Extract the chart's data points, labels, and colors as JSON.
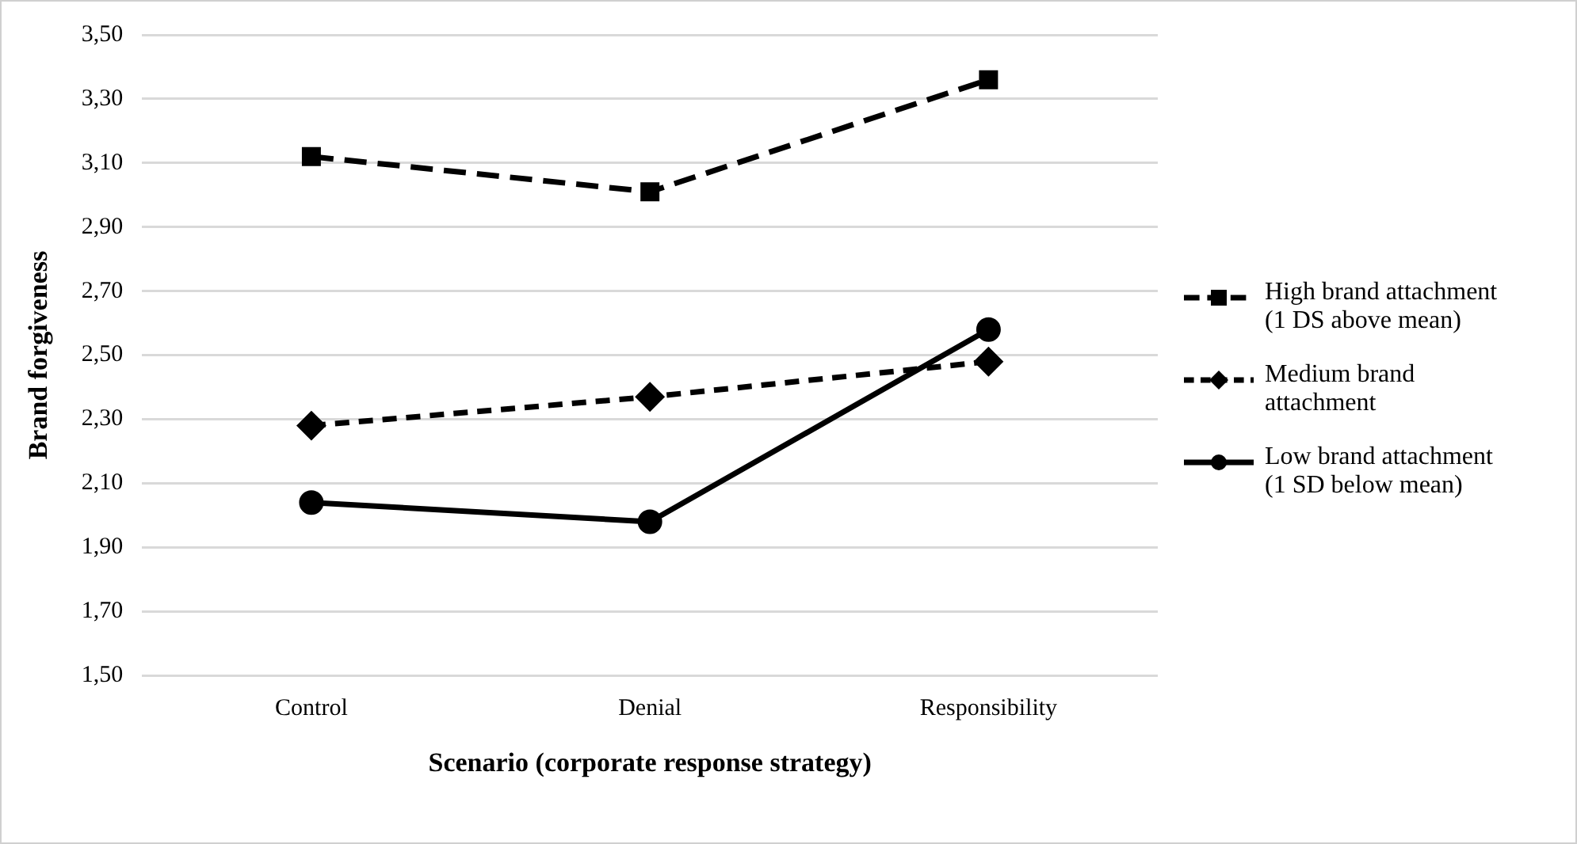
{
  "chart_data": {
    "type": "line",
    "xlabel": "Scenario (corporate response strategy)",
    "ylabel": "Brand forgiveness",
    "categories": [
      "Control",
      "Denial",
      "Responsibility"
    ],
    "series": [
      {
        "name": "High brand attachment (1 DS above mean)",
        "color": "#000000",
        "values": [
          3.12,
          3.01,
          3.36
        ],
        "marker": "square",
        "line_style": "dashed"
      },
      {
        "name": "Medium brand attachment",
        "color": "#000000",
        "values": [
          2.28,
          2.37,
          2.48
        ],
        "marker": "diamond",
        "line_style": "dotted"
      },
      {
        "name": "Low brand attachment (1 SD below mean)",
        "color": "#000000",
        "values": [
          2.04,
          1.98,
          2.58
        ],
        "marker": "circle",
        "line_style": "solid"
      }
    ],
    "ylim": [
      1.5,
      3.5
    ],
    "yticks": [
      {
        "value": 1.5,
        "label": "1,50"
      },
      {
        "value": 1.7,
        "label": "1,70"
      },
      {
        "value": 1.9,
        "label": "1,90"
      },
      {
        "value": 2.1,
        "label": "2,10"
      },
      {
        "value": 2.3,
        "label": "2,30"
      },
      {
        "value": 2.5,
        "label": "2,50"
      },
      {
        "value": 2.7,
        "label": "2,70"
      },
      {
        "value": 2.9,
        "label": "2,90"
      },
      {
        "value": 3.1,
        "label": "3,10"
      },
      {
        "value": 3.3,
        "label": "3,30"
      },
      {
        "value": 3.5,
        "label": "3,50"
      }
    ],
    "grid": "y",
    "legend": "right"
  }
}
